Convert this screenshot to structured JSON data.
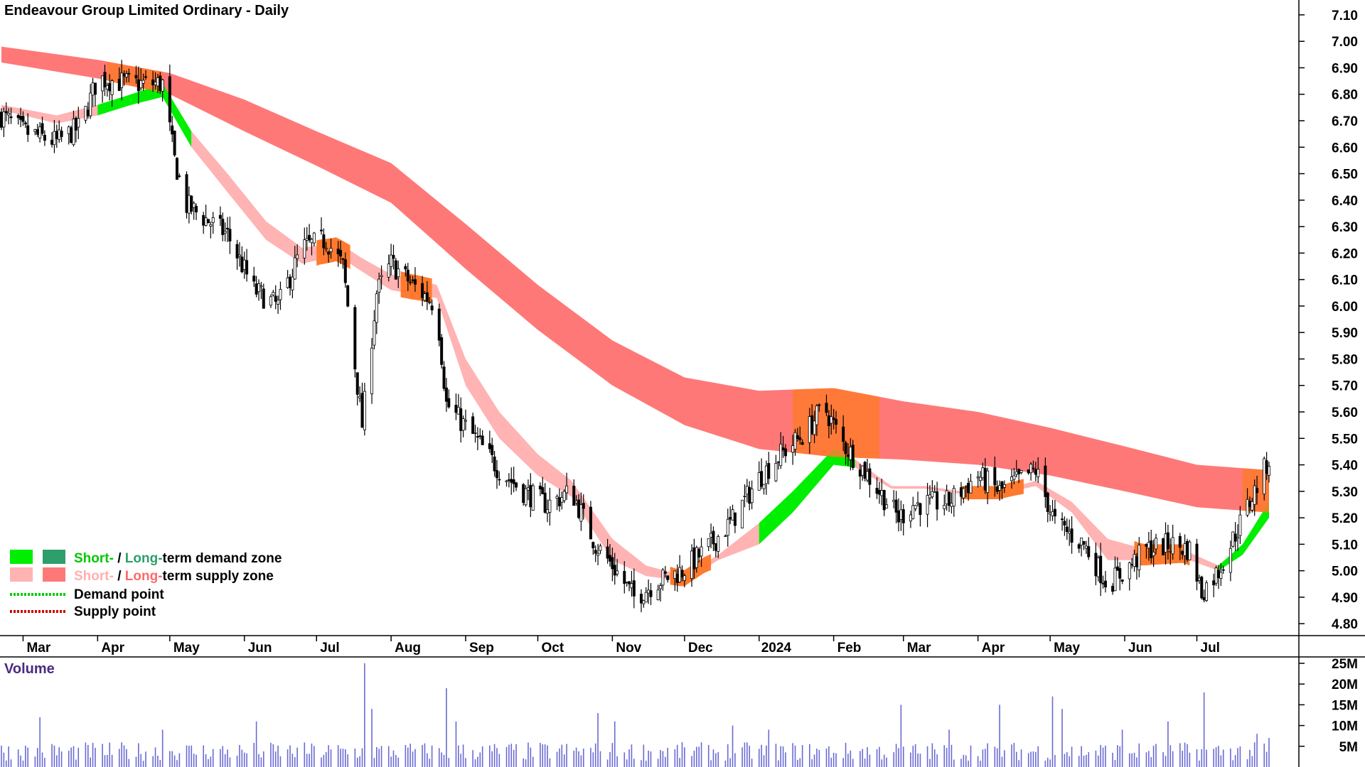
{
  "chart_data": {
    "type": "candlestick",
    "title": "Endeavour Group Limited Ordinary - Daily",
    "y_ticks": [
      "7.10",
      "7.00",
      "6.90",
      "6.80",
      "6.70",
      "6.60",
      "6.50",
      "6.40",
      "6.30",
      "6.20",
      "6.10",
      "6.00",
      "5.90",
      "5.80",
      "5.70",
      "5.60",
      "5.50",
      "5.40",
      "5.30",
      "5.20",
      "5.10",
      "5.00",
      "4.90",
      "4.80"
    ],
    "ylim": [
      4.72,
      7.14
    ],
    "x_labels": [
      "Mar",
      "Apr",
      "May",
      "Jun",
      "Jul",
      "Aug",
      "Sep",
      "Oct",
      "Nov",
      "Dec",
      "2024",
      "Feb",
      "Mar",
      "Apr",
      "May",
      "Jun",
      "Jul"
    ],
    "x_label_dates": [
      "2023-03-01",
      "2023-04-01",
      "2023-05-01",
      "2023-06-01",
      "2023-07-01",
      "2023-08-01",
      "2023-09-01",
      "2023-10-01",
      "2023-11-01",
      "2023-12-01",
      "2024-01-01",
      "2024-02-01",
      "2024-03-01",
      "2024-04-01",
      "2024-05-01",
      "2024-06-01",
      "2024-07-01"
    ],
    "date_range": [
      "2023-02-20",
      "2024-07-31"
    ],
    "close_path": [
      [
        "2023-02-20",
        6.72
      ],
      [
        "2023-03-01",
        6.66
      ],
      [
        "2023-03-15",
        6.62
      ],
      [
        "2023-03-25",
        6.68
      ],
      [
        "2023-04-01",
        6.86
      ],
      [
        "2023-04-15",
        6.84
      ],
      [
        "2023-04-28",
        6.84
      ],
      [
        "2023-05-03",
        6.55
      ],
      [
        "2023-05-08",
        6.38
      ],
      [
        "2023-05-25",
        6.27
      ],
      [
        "2023-06-05",
        6.06
      ],
      [
        "2023-06-15",
        6.0
      ],
      [
        "2023-06-25",
        6.22
      ],
      [
        "2023-07-05",
        6.25
      ],
      [
        "2023-07-12",
        6.15
      ],
      [
        "2023-07-20",
        5.55
      ],
      [
        "2023-07-26",
        6.05
      ],
      [
        "2023-08-01",
        6.16
      ],
      [
        "2023-08-10",
        6.08
      ],
      [
        "2023-08-20",
        6.0
      ],
      [
        "2023-08-24",
        5.63
      ],
      [
        "2023-09-05",
        5.5
      ],
      [
        "2023-09-15",
        5.38
      ],
      [
        "2023-09-25",
        5.3
      ],
      [
        "2023-10-05",
        5.25
      ],
      [
        "2023-10-15",
        5.3
      ],
      [
        "2023-10-25",
        5.1
      ],
      [
        "2023-11-01",
        5.02
      ],
      [
        "2023-11-10",
        4.9
      ],
      [
        "2023-11-20",
        4.96
      ],
      [
        "2023-11-30",
        5.0
      ],
      [
        "2023-12-10",
        5.08
      ],
      [
        "2023-12-20",
        5.18
      ],
      [
        "2024-01-01",
        5.35
      ],
      [
        "2024-01-10",
        5.44
      ],
      [
        "2024-01-20",
        5.52
      ],
      [
        "2024-01-28",
        5.62
      ],
      [
        "2024-02-05",
        5.48
      ],
      [
        "2024-02-12",
        5.4
      ],
      [
        "2024-02-20",
        5.3
      ],
      [
        "2024-02-28",
        5.2
      ],
      [
        "2024-03-05",
        5.25
      ],
      [
        "2024-03-20",
        5.26
      ],
      [
        "2024-04-01",
        5.36
      ],
      [
        "2024-04-10",
        5.3
      ],
      [
        "2024-04-25",
        5.38
      ],
      [
        "2024-05-03",
        5.18
      ],
      [
        "2024-05-15",
        5.1
      ],
      [
        "2024-05-25",
        4.95
      ],
      [
        "2024-06-01",
        5.0
      ],
      [
        "2024-06-10",
        5.08
      ],
      [
        "2024-06-20",
        5.1
      ],
      [
        "2024-06-28",
        5.08
      ],
      [
        "2024-07-03",
        4.92
      ],
      [
        "2024-07-10",
        5.0
      ],
      [
        "2024-07-20",
        5.2
      ],
      [
        "2024-07-31",
        5.42
      ]
    ],
    "short_term_zone": [
      [
        "2023-02-20",
        6.76,
        6.74
      ],
      [
        "2023-03-15",
        6.72,
        6.69
      ],
      [
        "2023-04-01",
        6.76,
        6.72
      ],
      [
        "2023-04-15",
        6.8,
        6.76
      ],
      [
        "2023-04-28",
        6.84,
        6.79
      ],
      [
        "2023-05-10",
        6.66,
        6.6
      ],
      [
        "2023-05-25",
        6.5,
        6.43
      ],
      [
        "2023-06-10",
        6.32,
        6.25
      ],
      [
        "2023-06-25",
        6.22,
        6.16
      ],
      [
        "2023-07-10",
        6.24,
        6.19
      ],
      [
        "2023-07-20",
        6.18,
        6.13
      ],
      [
        "2023-08-01",
        6.12,
        6.06
      ],
      [
        "2023-08-20",
        6.08,
        6.03
      ],
      [
        "2023-09-01",
        5.8,
        5.7
      ],
      [
        "2023-09-15",
        5.6,
        5.5
      ],
      [
        "2023-10-01",
        5.44,
        5.36
      ],
      [
        "2023-10-15",
        5.34,
        5.28
      ],
      [
        "2023-11-01",
        5.12,
        5.04
      ],
      [
        "2023-11-15",
        5.02,
        4.98
      ],
      [
        "2023-12-01",
        4.98,
        4.96
      ],
      [
        "2023-12-15",
        5.06,
        5.04
      ],
      [
        "2024-01-01",
        5.18,
        5.1
      ],
      [
        "2024-01-15",
        5.3,
        5.22
      ],
      [
        "2024-02-01",
        5.46,
        5.4
      ],
      [
        "2024-02-10",
        5.42,
        5.39
      ],
      [
        "2024-02-25",
        5.32,
        5.31
      ],
      [
        "2024-03-10",
        5.32,
        5.31
      ],
      [
        "2024-03-25",
        5.3,
        5.29
      ],
      [
        "2024-04-10",
        5.3,
        5.29
      ],
      [
        "2024-04-25",
        5.34,
        5.32
      ],
      [
        "2024-05-10",
        5.26,
        5.22
      ],
      [
        "2024-05-25",
        5.12,
        5.04
      ],
      [
        "2024-06-10",
        5.08,
        5.04
      ],
      [
        "2024-06-25",
        5.08,
        5.05
      ],
      [
        "2024-07-10",
        5.02,
        5.0
      ],
      [
        "2024-07-20",
        5.1,
        5.06
      ],
      [
        "2024-07-31",
        5.26,
        5.2
      ]
    ],
    "long_term_zone": [
      [
        "2023-02-20",
        6.98,
        6.92
      ],
      [
        "2023-04-01",
        6.93,
        6.86
      ],
      [
        "2023-05-01",
        6.88,
        6.8
      ],
      [
        "2023-06-01",
        6.78,
        6.66
      ],
      [
        "2023-07-01",
        6.66,
        6.53
      ],
      [
        "2023-08-01",
        6.54,
        6.39
      ],
      [
        "2023-09-01",
        6.31,
        6.14
      ],
      [
        "2023-10-01",
        6.08,
        5.91
      ],
      [
        "2023-11-01",
        5.87,
        5.7
      ],
      [
        "2023-12-01",
        5.73,
        5.55
      ],
      [
        "2024-01-01",
        5.68,
        5.46
      ],
      [
        "2024-02-01",
        5.69,
        5.43
      ],
      [
        "2024-03-01",
        5.64,
        5.42
      ],
      [
        "2024-04-01",
        5.6,
        5.4
      ],
      [
        "2024-05-01",
        5.54,
        5.36
      ],
      [
        "2024-06-01",
        5.47,
        5.3
      ],
      [
        "2024-07-01",
        5.4,
        5.24
      ],
      [
        "2024-07-31",
        5.38,
        5.22
      ]
    ],
    "legend": {
      "demand_zone": {
        "short": "Short-",
        "sep": " / ",
        "long": "Long-",
        "rest": "term demand zone"
      },
      "supply_zone": {
        "short": "Short-",
        "sep": " / ",
        "long": "Long-",
        "rest": "term supply zone"
      },
      "demand_point": "Demand point",
      "supply_point": "Supply point",
      "placement": "bottom-left"
    },
    "colors": {
      "short_demand": "#00ee00",
      "long_demand": "#2e9e6b",
      "short_supply": "#ffb3b3",
      "long_supply": "#ff7878",
      "overlap": "#ff7a2e",
      "demand_point": "#00cc00",
      "supply_point": "#cc0000",
      "candle": "#000000",
      "volume_bar": "#6a6ad4",
      "volume_title": "#4b2a7f"
    },
    "volume": {
      "title": "Volume",
      "y_ticks": [
        "25M",
        "20M",
        "15M",
        "10M",
        "5M"
      ],
      "ylim": [
        0,
        25
      ],
      "unit": "M",
      "spikes": [
        [
          "2023-03-08",
          12
        ],
        [
          "2023-04-28",
          9
        ],
        [
          "2023-06-06",
          11
        ],
        [
          "2023-07-21",
          25
        ],
        [
          "2023-07-24",
          14
        ],
        [
          "2023-08-24",
          19
        ],
        [
          "2023-08-28",
          11
        ],
        [
          "2023-10-26",
          13
        ],
        [
          "2023-11-02",
          11
        ],
        [
          "2023-12-21",
          10
        ],
        [
          "2024-01-05",
          9
        ],
        [
          "2024-02-29",
          15
        ],
        [
          "2024-03-20",
          9
        ],
        [
          "2024-04-10",
          15
        ],
        [
          "2024-05-02",
          17
        ],
        [
          "2024-05-06",
          14
        ],
        [
          "2024-05-31",
          9
        ],
        [
          "2024-06-19",
          11
        ],
        [
          "2024-07-04",
          18
        ],
        [
          "2024-07-26",
          8
        ],
        [
          "2024-07-31",
          7
        ]
      ]
    }
  }
}
